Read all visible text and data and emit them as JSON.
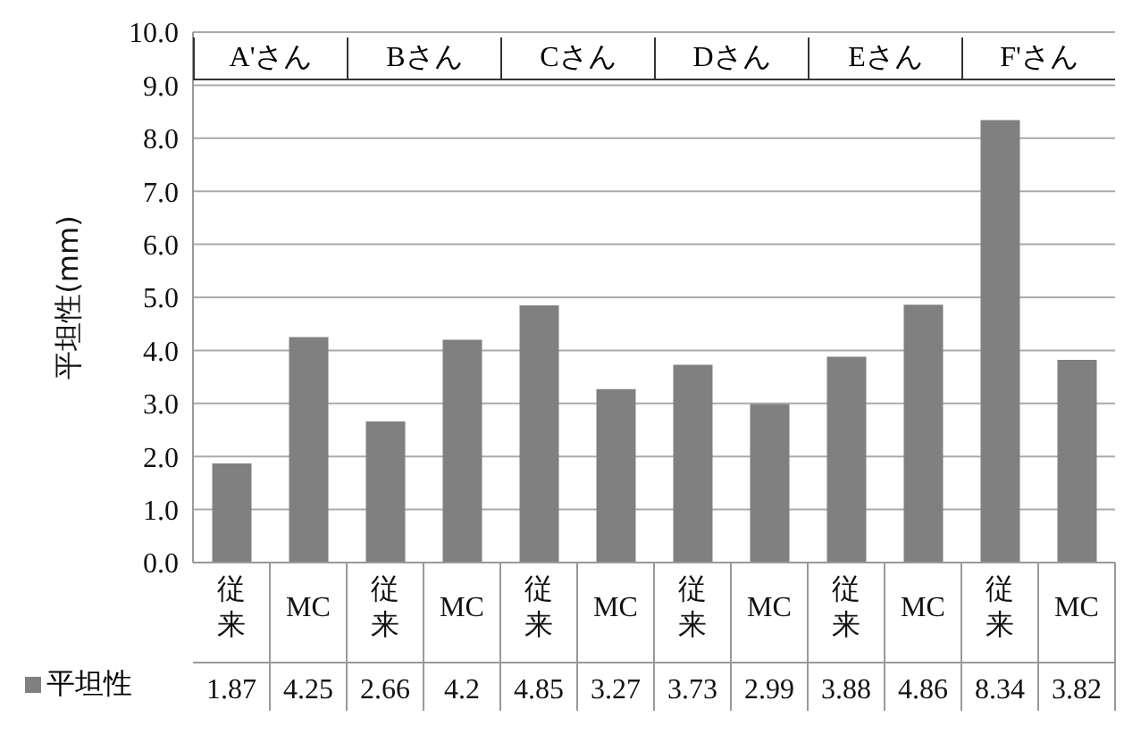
{
  "chart_data": {
    "type": "bar",
    "ylabel": "平坦性(mm)",
    "categories": [
      "従来",
      "MC",
      "従来",
      "MC",
      "従来",
      "MC",
      "従来",
      "MC",
      "従来",
      "MC",
      "従来",
      "MC"
    ],
    "series": [
      {
        "name": "平坦性",
        "color": "#808080",
        "values": [
          1.87,
          4.25,
          2.66,
          4.2,
          4.85,
          3.27,
          3.73,
          2.99,
          3.88,
          4.86,
          8.34,
          3.82
        ]
      }
    ],
    "ylim": [
      0,
      10
    ],
    "yticks": [
      {
        "value": 0,
        "label": "0.0"
      },
      {
        "value": 1,
        "label": "1.0"
      },
      {
        "value": 2,
        "label": "2.0"
      },
      {
        "value": 3,
        "label": "3.0"
      },
      {
        "value": 4,
        "label": "4.0"
      },
      {
        "value": 5,
        "label": "5.0"
      },
      {
        "value": 6,
        "label": "6.0"
      },
      {
        "value": 7,
        "label": "7.0"
      },
      {
        "value": 8,
        "label": "8.0"
      },
      {
        "value": 9,
        "label": "9.0"
      },
      {
        "value": 10,
        "label": "10.0"
      }
    ],
    "annotations": [
      "A'さん",
      "Bさん",
      "Cさん",
      "Dさん",
      "Eさん",
      "F'さん"
    ],
    "grid": "y",
    "legend": "bottom",
    "data_labels": true
  }
}
